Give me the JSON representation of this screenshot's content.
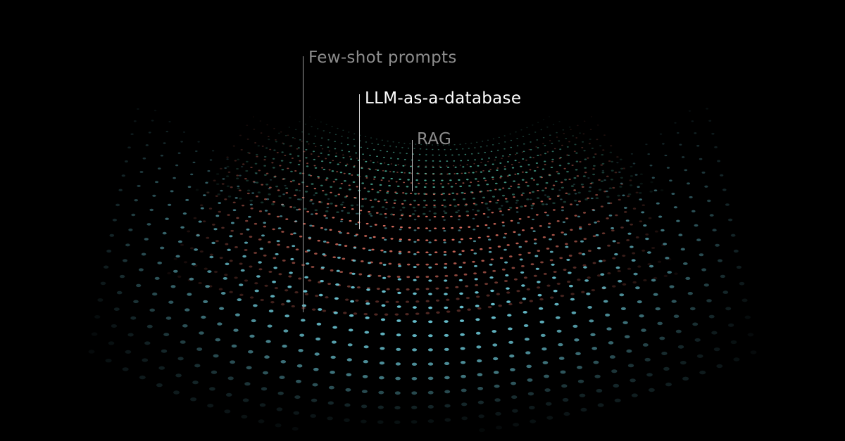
{
  "labels": {
    "few_shot": {
      "text": "Few-shot prompts",
      "color": "#8c8c8c"
    },
    "llm_db": {
      "text": "LLM-as-a-database",
      "color": "#ffffff"
    },
    "rag": {
      "text": "RAG",
      "color": "#8c8c8c"
    }
  },
  "surfaces": {
    "back": {
      "color": "#4fb8a0"
    },
    "middle": {
      "color": "#e07060"
    },
    "front": {
      "color": "#6cc9d8"
    }
  },
  "background": "#000000"
}
